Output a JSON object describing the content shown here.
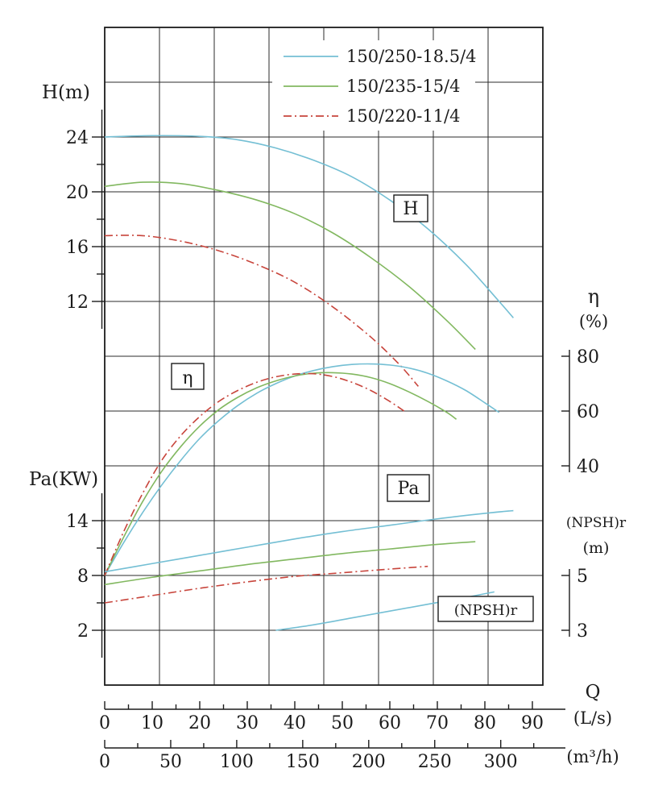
{
  "page": {
    "background": "#ffffff"
  },
  "colors": {
    "model_250": "#74bfd4",
    "model_235": "#82b860",
    "model_220": "#c8453c",
    "axis": "#1c1c1c",
    "grid": "#2b2b2b"
  },
  "legend": {
    "items": [
      {
        "label": "150/250-18.5/4",
        "model": "model_250",
        "dash": "solid"
      },
      {
        "label": "150/235-15/4",
        "model": "model_235",
        "dash": "solid"
      },
      {
        "label": "150/220-11/4",
        "model": "model_220",
        "dash": "dashdot"
      }
    ]
  },
  "labels": {
    "h_axis": "H(m)",
    "pa_axis": "Pa(KW)",
    "eta_symbol": "η",
    "eta_unit": "(%)",
    "npsh_name": "(NPSH)r",
    "npsh_unit": "(m)",
    "q_symbol": "Q",
    "q_unit_ls": "(L/s)",
    "q_unit_m3h": "(m³/h)"
  },
  "annotations": {
    "h": "H",
    "eta": "η",
    "pa": "Pa",
    "npsh": "(NPSH)r"
  },
  "chart_data": {
    "type": "line",
    "x": {
      "label": "Q",
      "unit_primary": "L/s",
      "unit_secondary": "m³/h",
      "ticks_ls": [
        0,
        10,
        20,
        30,
        40,
        50,
        60,
        70,
        80,
        90
      ],
      "ticks_m3h": [
        0,
        50,
        100,
        150,
        200,
        250,
        300
      ],
      "range_ls": [
        0,
        95
      ]
    },
    "y_axes": {
      "H": {
        "unit": "m",
        "ticks": [
          24,
          20,
          16,
          12
        ]
      },
      "Pa": {
        "unit": "KW",
        "ticks": [
          14,
          8,
          2
        ]
      },
      "eta": {
        "unit": "%",
        "ticks": [
          80,
          60,
          40
        ]
      },
      "NPSHr": {
        "unit": "m",
        "ticks": [
          5,
          3
        ]
      }
    },
    "series": [
      {
        "id": "h-250",
        "name": "150/250-18.5/4 H",
        "model": "model_250",
        "y_axis": "H",
        "dash": "solid",
        "points": [
          [
            0,
            24
          ],
          [
            10,
            24.1
          ],
          [
            20,
            24.05
          ],
          [
            28,
            23.8
          ],
          [
            36,
            23.2
          ],
          [
            44,
            22.3
          ],
          [
            52,
            21.1
          ],
          [
            60,
            19.4
          ],
          [
            68,
            17.3
          ],
          [
            76,
            14.7
          ],
          [
            83,
            12.0
          ],
          [
            86,
            10.8
          ]
        ]
      },
      {
        "id": "h-235",
        "name": "150/235-15/4 H",
        "model": "model_235",
        "y_axis": "H",
        "dash": "solid",
        "points": [
          [
            0,
            20.4
          ],
          [
            8,
            20.7
          ],
          [
            16,
            20.6
          ],
          [
            24,
            20.1
          ],
          [
            32,
            19.4
          ],
          [
            40,
            18.4
          ],
          [
            48,
            17.0
          ],
          [
            56,
            15.2
          ],
          [
            64,
            13.1
          ],
          [
            72,
            10.6
          ],
          [
            78,
            8.5
          ]
        ]
      },
      {
        "id": "h-220",
        "name": "150/220-11/4 H",
        "model": "model_220",
        "y_axis": "H",
        "dash": "dashdot",
        "points": [
          [
            0,
            16.8
          ],
          [
            8,
            16.8
          ],
          [
            16,
            16.4
          ],
          [
            24,
            15.7
          ],
          [
            32,
            14.7
          ],
          [
            40,
            13.4
          ],
          [
            48,
            11.6
          ],
          [
            56,
            9.4
          ],
          [
            62,
            7.4
          ],
          [
            66,
            5.8
          ]
        ]
      },
      {
        "id": "eta-250",
        "name": "150/250-18.5/4 η",
        "model": "model_250",
        "y_axis": "eta",
        "dash": "solid",
        "points": [
          [
            0,
            0
          ],
          [
            4,
            12
          ],
          [
            8,
            23
          ],
          [
            12,
            33
          ],
          [
            16,
            42
          ],
          [
            20,
            50
          ],
          [
            24,
            56.5
          ],
          [
            28,
            62
          ],
          [
            32,
            66.5
          ],
          [
            36,
            70
          ],
          [
            40,
            72.8
          ],
          [
            44,
            74.8
          ],
          [
            48,
            76.2
          ],
          [
            52,
            77
          ],
          [
            56,
            77.2
          ],
          [
            60,
            76.8
          ],
          [
            64,
            75.7
          ],
          [
            68,
            73.8
          ],
          [
            72,
            71
          ],
          [
            76,
            67.5
          ],
          [
            80,
            63
          ],
          [
            83,
            59.5
          ]
        ]
      },
      {
        "id": "eta-235",
        "name": "150/235-15/4 η",
        "model": "model_235",
        "y_axis": "eta",
        "dash": "solid",
        "points": [
          [
            0,
            0
          ],
          [
            4,
            14
          ],
          [
            8,
            27
          ],
          [
            12,
            38
          ],
          [
            16,
            47
          ],
          [
            20,
            54.5
          ],
          [
            24,
            60.5
          ],
          [
            28,
            65
          ],
          [
            32,
            68.5
          ],
          [
            36,
            71
          ],
          [
            40,
            72.8
          ],
          [
            44,
            73.8
          ],
          [
            48,
            74
          ],
          [
            52,
            73.5
          ],
          [
            56,
            72.2
          ],
          [
            60,
            70
          ],
          [
            64,
            67
          ],
          [
            68,
            63.5
          ],
          [
            72,
            59.5
          ],
          [
            74,
            57
          ]
        ]
      },
      {
        "id": "eta-220",
        "name": "150/220-11/4 η",
        "model": "model_220",
        "y_axis": "eta",
        "dash": "dashdot",
        "points": [
          [
            0,
            0
          ],
          [
            4,
            16
          ],
          [
            8,
            30
          ],
          [
            12,
            42
          ],
          [
            16,
            51
          ],
          [
            20,
            58
          ],
          [
            24,
            63.5
          ],
          [
            28,
            67.5
          ],
          [
            32,
            70.5
          ],
          [
            36,
            72.5
          ],
          [
            40,
            73.5
          ],
          [
            44,
            73.6
          ],
          [
            48,
            72.6
          ],
          [
            52,
            70.5
          ],
          [
            56,
            67.5
          ],
          [
            60,
            63.5
          ],
          [
            63,
            60
          ]
        ]
      },
      {
        "id": "pa-250",
        "name": "150/250-18.5/4 Pa",
        "model": "model_250",
        "y_axis": "Pa",
        "dash": "solid",
        "points": [
          [
            0,
            8.4
          ],
          [
            10,
            9.3
          ],
          [
            20,
            10.2
          ],
          [
            30,
            11.1
          ],
          [
            40,
            12.0
          ],
          [
            50,
            12.8
          ],
          [
            60,
            13.5
          ],
          [
            70,
            14.2
          ],
          [
            80,
            14.8
          ],
          [
            86,
            15.1
          ]
        ]
      },
      {
        "id": "pa-235",
        "name": "150/235-15/4 Pa",
        "model": "model_235",
        "y_axis": "Pa",
        "dash": "solid",
        "points": [
          [
            0,
            7.0
          ],
          [
            10,
            7.8
          ],
          [
            20,
            8.5
          ],
          [
            30,
            9.2
          ],
          [
            40,
            9.8
          ],
          [
            50,
            10.4
          ],
          [
            60,
            10.9
          ],
          [
            70,
            11.4
          ],
          [
            78,
            11.7
          ]
        ]
      },
      {
        "id": "pa-220",
        "name": "150/220-11/4 Pa",
        "model": "model_220",
        "y_axis": "Pa",
        "dash": "dashdot",
        "points": [
          [
            0,
            5.0
          ],
          [
            10,
            5.8
          ],
          [
            20,
            6.6
          ],
          [
            30,
            7.3
          ],
          [
            40,
            7.9
          ],
          [
            50,
            8.3
          ],
          [
            60,
            8.7
          ],
          [
            68,
            9.0
          ]
        ]
      },
      {
        "id": "npshr-250",
        "name": "150/250-18.5/4 (NPSH)r",
        "model": "model_250",
        "y_axis": "NPSHr",
        "dash": "solid",
        "points": [
          [
            36,
            3.0
          ],
          [
            44,
            3.2
          ],
          [
            52,
            3.45
          ],
          [
            60,
            3.7
          ],
          [
            68,
            3.95
          ],
          [
            76,
            4.2
          ],
          [
            82,
            4.4
          ]
        ]
      }
    ]
  }
}
